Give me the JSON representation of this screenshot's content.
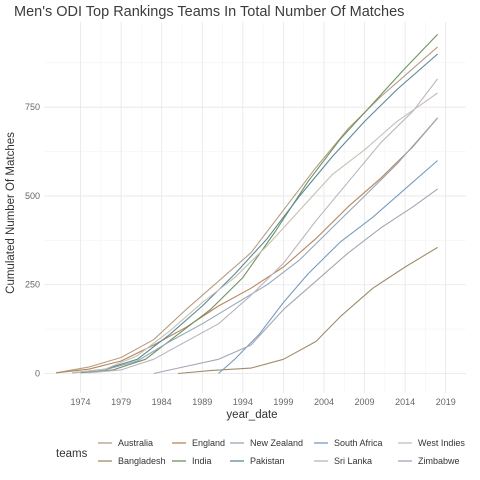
{
  "chart_data": {
    "type": "line",
    "title": "Men's ODI Top Rankings Teams In Total Number Of Matches",
    "xlabel": "year_date",
    "ylabel": "Cumulated Number Of Matches",
    "xlim": [
      1969.5,
      2021.5
    ],
    "ylim": [
      -55,
      990
    ],
    "x_ticks": [
      1974,
      1979,
      1984,
      1989,
      1994,
      1999,
      2004,
      2009,
      2014,
      2019
    ],
    "y_ticks": [
      0,
      250,
      500,
      750
    ],
    "grid": true,
    "legend_title": "teams",
    "legend_position": "bottom",
    "series": [
      {
        "name": "Australia",
        "color": "#b49e83",
        "x": [
          1971,
          1975,
          1979,
          1983,
          1987,
          1991,
          1995,
          1999,
          2003,
          2007,
          2011,
          2015,
          2018
        ],
        "y": [
          2,
          18,
          45,
          95,
          180,
          260,
          340,
          460,
          580,
          690,
          780,
          860,
          920
        ]
      },
      {
        "name": "Bangladesh",
        "color": "#a08c6c",
        "x": [
          1986,
          1990,
          1995,
          1999,
          2003,
          2006,
          2010,
          2014,
          2018
        ],
        "y": [
          0,
          8,
          15,
          40,
          90,
          160,
          240,
          300,
          355
        ]
      },
      {
        "name": "England",
        "color": "#b8855a",
        "x": [
          1971,
          1975,
          1979,
          1983,
          1987,
          1991,
          1995,
          1999,
          2003,
          2007,
          2011,
          2015,
          2018
        ],
        "y": [
          2,
          12,
          35,
          80,
          130,
          190,
          240,
          300,
          380,
          470,
          550,
          640,
          720
        ]
      },
      {
        "name": "India",
        "color": "#6e9260",
        "x": [
          1974,
          1978,
          1982,
          1986,
          1990,
          1994,
          1998,
          2002,
          2006,
          2010,
          2014,
          2018
        ],
        "y": [
          2,
          10,
          40,
          110,
          180,
          270,
          400,
          540,
          660,
          760,
          860,
          955
        ]
      },
      {
        "name": "New Zealand",
        "color": "#96a8b8",
        "x": [
          1973,
          1977,
          1981,
          1985,
          1989,
          1993,
          1997,
          2001,
          2005,
          2009,
          2013,
          2018
        ],
        "y": [
          2,
          10,
          35,
          90,
          140,
          195,
          250,
          320,
          410,
          500,
          590,
          720
        ]
      },
      {
        "name": "Pakistan",
        "color": "#5d8896",
        "x": [
          1973,
          1977,
          1981,
          1985,
          1989,
          1993,
          1997,
          2001,
          2005,
          2009,
          2013,
          2018
        ],
        "y": [
          2,
          12,
          40,
          110,
          190,
          280,
          380,
          500,
          610,
          710,
          800,
          900
        ]
      },
      {
        "name": "South Africa",
        "color": "#7a9cc0",
        "x": [
          1991,
          1993,
          1996,
          1999,
          2002,
          2006,
          2010,
          2014,
          2018
        ],
        "y": [
          0,
          40,
          110,
          200,
          280,
          370,
          440,
          520,
          600
        ]
      },
      {
        "name": "Sri Lanka",
        "color": "#bcb4be",
        "x": [
          1975,
          1979,
          1983,
          1987,
          1991,
          1995,
          1999,
          2003,
          2007,
          2011,
          2015,
          2018
        ],
        "y": [
          2,
          10,
          40,
          90,
          140,
          220,
          310,
          430,
          540,
          650,
          740,
          830
        ]
      },
      {
        "name": "West Indies",
        "color": "#c4c0b4",
        "x": [
          1973,
          1977,
          1981,
          1985,
          1989,
          1993,
          1997,
          2001,
          2005,
          2009,
          2013,
          2018
        ],
        "y": [
          2,
          12,
          50,
          120,
          200,
          270,
          360,
          460,
          560,
          630,
          710,
          790
        ]
      },
      {
        "name": "Zimbabwe",
        "color": "#a0a8b4",
        "x": [
          1983,
          1987,
          1991,
          1995,
          1999,
          2003,
          2007,
          2011,
          2015,
          2018
        ],
        "y": [
          0,
          20,
          40,
          80,
          180,
          260,
          340,
          410,
          470,
          520
        ]
      }
    ]
  }
}
